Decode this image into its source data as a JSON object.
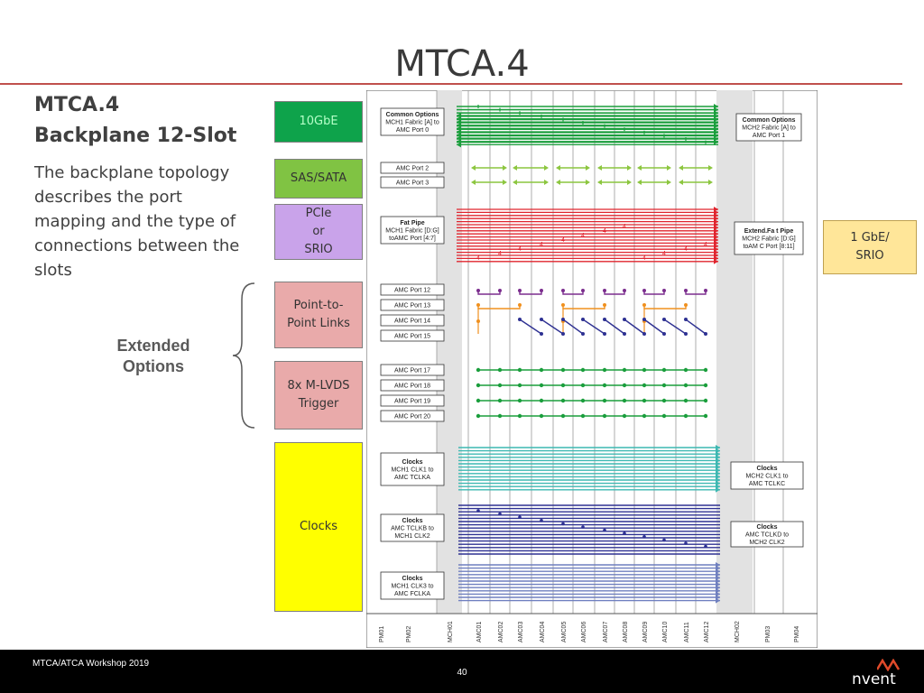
{
  "slide": {
    "title": "MTCA.4",
    "subtitle_line1": "MTCA.4",
    "subtitle_line2": "Backplane 12-Slot",
    "description": "The backplane topology describes the port mapping and the type of connections between the slots",
    "extended_line1": "Extended",
    "extended_line2": "Options"
  },
  "categories": {
    "tengbe": "10GbE",
    "sas": "SAS/SATA",
    "pcie_1": "PCIe",
    "pcie_2": "or",
    "pcie_3": "SRIO",
    "p2p_1": "Point-to-",
    "p2p_2": "Point Links",
    "lvds_1": "8x M-LVDS",
    "lvds_2": "Trigger",
    "clocks": "Clocks"
  },
  "side_label": {
    "line1": "1 GbE/",
    "line2": "SRIO"
  },
  "diagram": {
    "slots": [
      "PM01",
      "PM02",
      "MCH01",
      "AMC01",
      "AMC02",
      "AMC03",
      "AMC04",
      "AMC05",
      "AMC06",
      "AMC07",
      "AMC08",
      "AMC09",
      "AMC10",
      "AMC11",
      "AMC12",
      "MCH02",
      "PM03",
      "PM04"
    ],
    "left_labels": {
      "common": [
        "Common Options",
        "MCH1 Fabric [A] to",
        "AMC Port 0"
      ],
      "port2": "AMC Port 2",
      "port3": "AMC Port 3",
      "fatpipe": [
        "Fat Pipe",
        "MCH1 Fabric [D:G]",
        "toAMC Port [4:7]"
      ],
      "port12": "AMC Port 12",
      "port13": "AMC Port 13",
      "port14": "AMC Port 14",
      "port15": "AMC Port 15",
      "port17": "AMC Port 17",
      "port18": "AMC Port 18",
      "port19": "AMC Port 19",
      "port20": "AMC Port 20",
      "clk1": [
        "Clocks",
        "MCH1 CLK1 to",
        "AMC TCLKA"
      ],
      "clk2": [
        "Clocks",
        "AMC TCLKB to",
        "MCH1 CLK2"
      ],
      "clk3": [
        "Clocks",
        "MCH1 CLK3 to",
        "AMC FCLKA"
      ]
    },
    "right_labels": {
      "common": [
        "Common Options",
        "MCH2 Fabric [A] to",
        "AMC Port 1"
      ],
      "fatpipe": [
        "Extend.Fa t Pipe",
        "MCH2 Fabric [D:G]",
        "toAM C Port [8:11]"
      ],
      "clk1": [
        "Clocks",
        "MCH2 CLK1 to",
        "AMC TCLKC"
      ],
      "clk2": [
        "Clocks",
        "AMC TCLKD to",
        "MCH2 CLK2"
      ]
    },
    "fatpipe_marker": "4",
    "colors": {
      "common": "#1a9e3c",
      "sas": "#8cc63f",
      "fatpipe": "#e0242e",
      "p2p_purple": "#7b2d8e",
      "p2p_orange": "#f0901e",
      "p2p_navy": "#2e3192",
      "lvds": "#1a9e3c",
      "clk1": "#3cb8b2",
      "clk2": "#2e3192",
      "clk3": "#6f7fbf"
    }
  },
  "footer": {
    "left": "MTCA/ATCA Workshop 2019",
    "page": "40",
    "logo": "nvent"
  }
}
